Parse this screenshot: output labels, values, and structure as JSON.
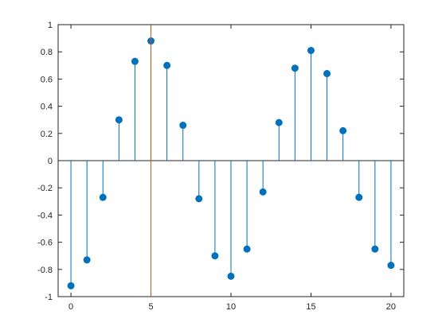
{
  "chart_data": {
    "type": "stem",
    "title": "",
    "xlabel": "",
    "ylabel": "",
    "xlim": [
      -0.8,
      20.8
    ],
    "ylim": [
      -1,
      1
    ],
    "xticks": [
      0,
      5,
      10,
      15,
      20
    ],
    "xtick_labels": [
      "0",
      "5",
      "10",
      "15",
      "20"
    ],
    "yticks": [
      -1,
      -0.8,
      -0.6,
      -0.4,
      -0.2,
      0,
      0.2,
      0.4,
      0.6,
      0.8,
      1
    ],
    "ytick_labels": [
      "-1",
      "-0.8",
      "-0.6",
      "-0.4",
      "-0.2",
      "0",
      "0.2",
      "0.4",
      "0.6",
      "0.8",
      "1"
    ],
    "grid": false,
    "baseline": 0,
    "series": [
      {
        "x": [
          0,
          1,
          2,
          3,
          4,
          5,
          6,
          7,
          8,
          9,
          10,
          11,
          12,
          13,
          14,
          15,
          16,
          17,
          18,
          19,
          20
        ],
        "values": [
          -0.92,
          -0.73,
          -0.27,
          0.3,
          0.73,
          0.88,
          0.7,
          0.26,
          -0.28,
          -0.7,
          -0.85,
          -0.65,
          -0.23,
          0.28,
          0.68,
          0.81,
          0.64,
          0.22,
          -0.27,
          -0.65,
          -0.77
        ],
        "color": "#0072BD"
      }
    ],
    "reference_line": {
      "x": 5,
      "color": "#D95319"
    }
  }
}
